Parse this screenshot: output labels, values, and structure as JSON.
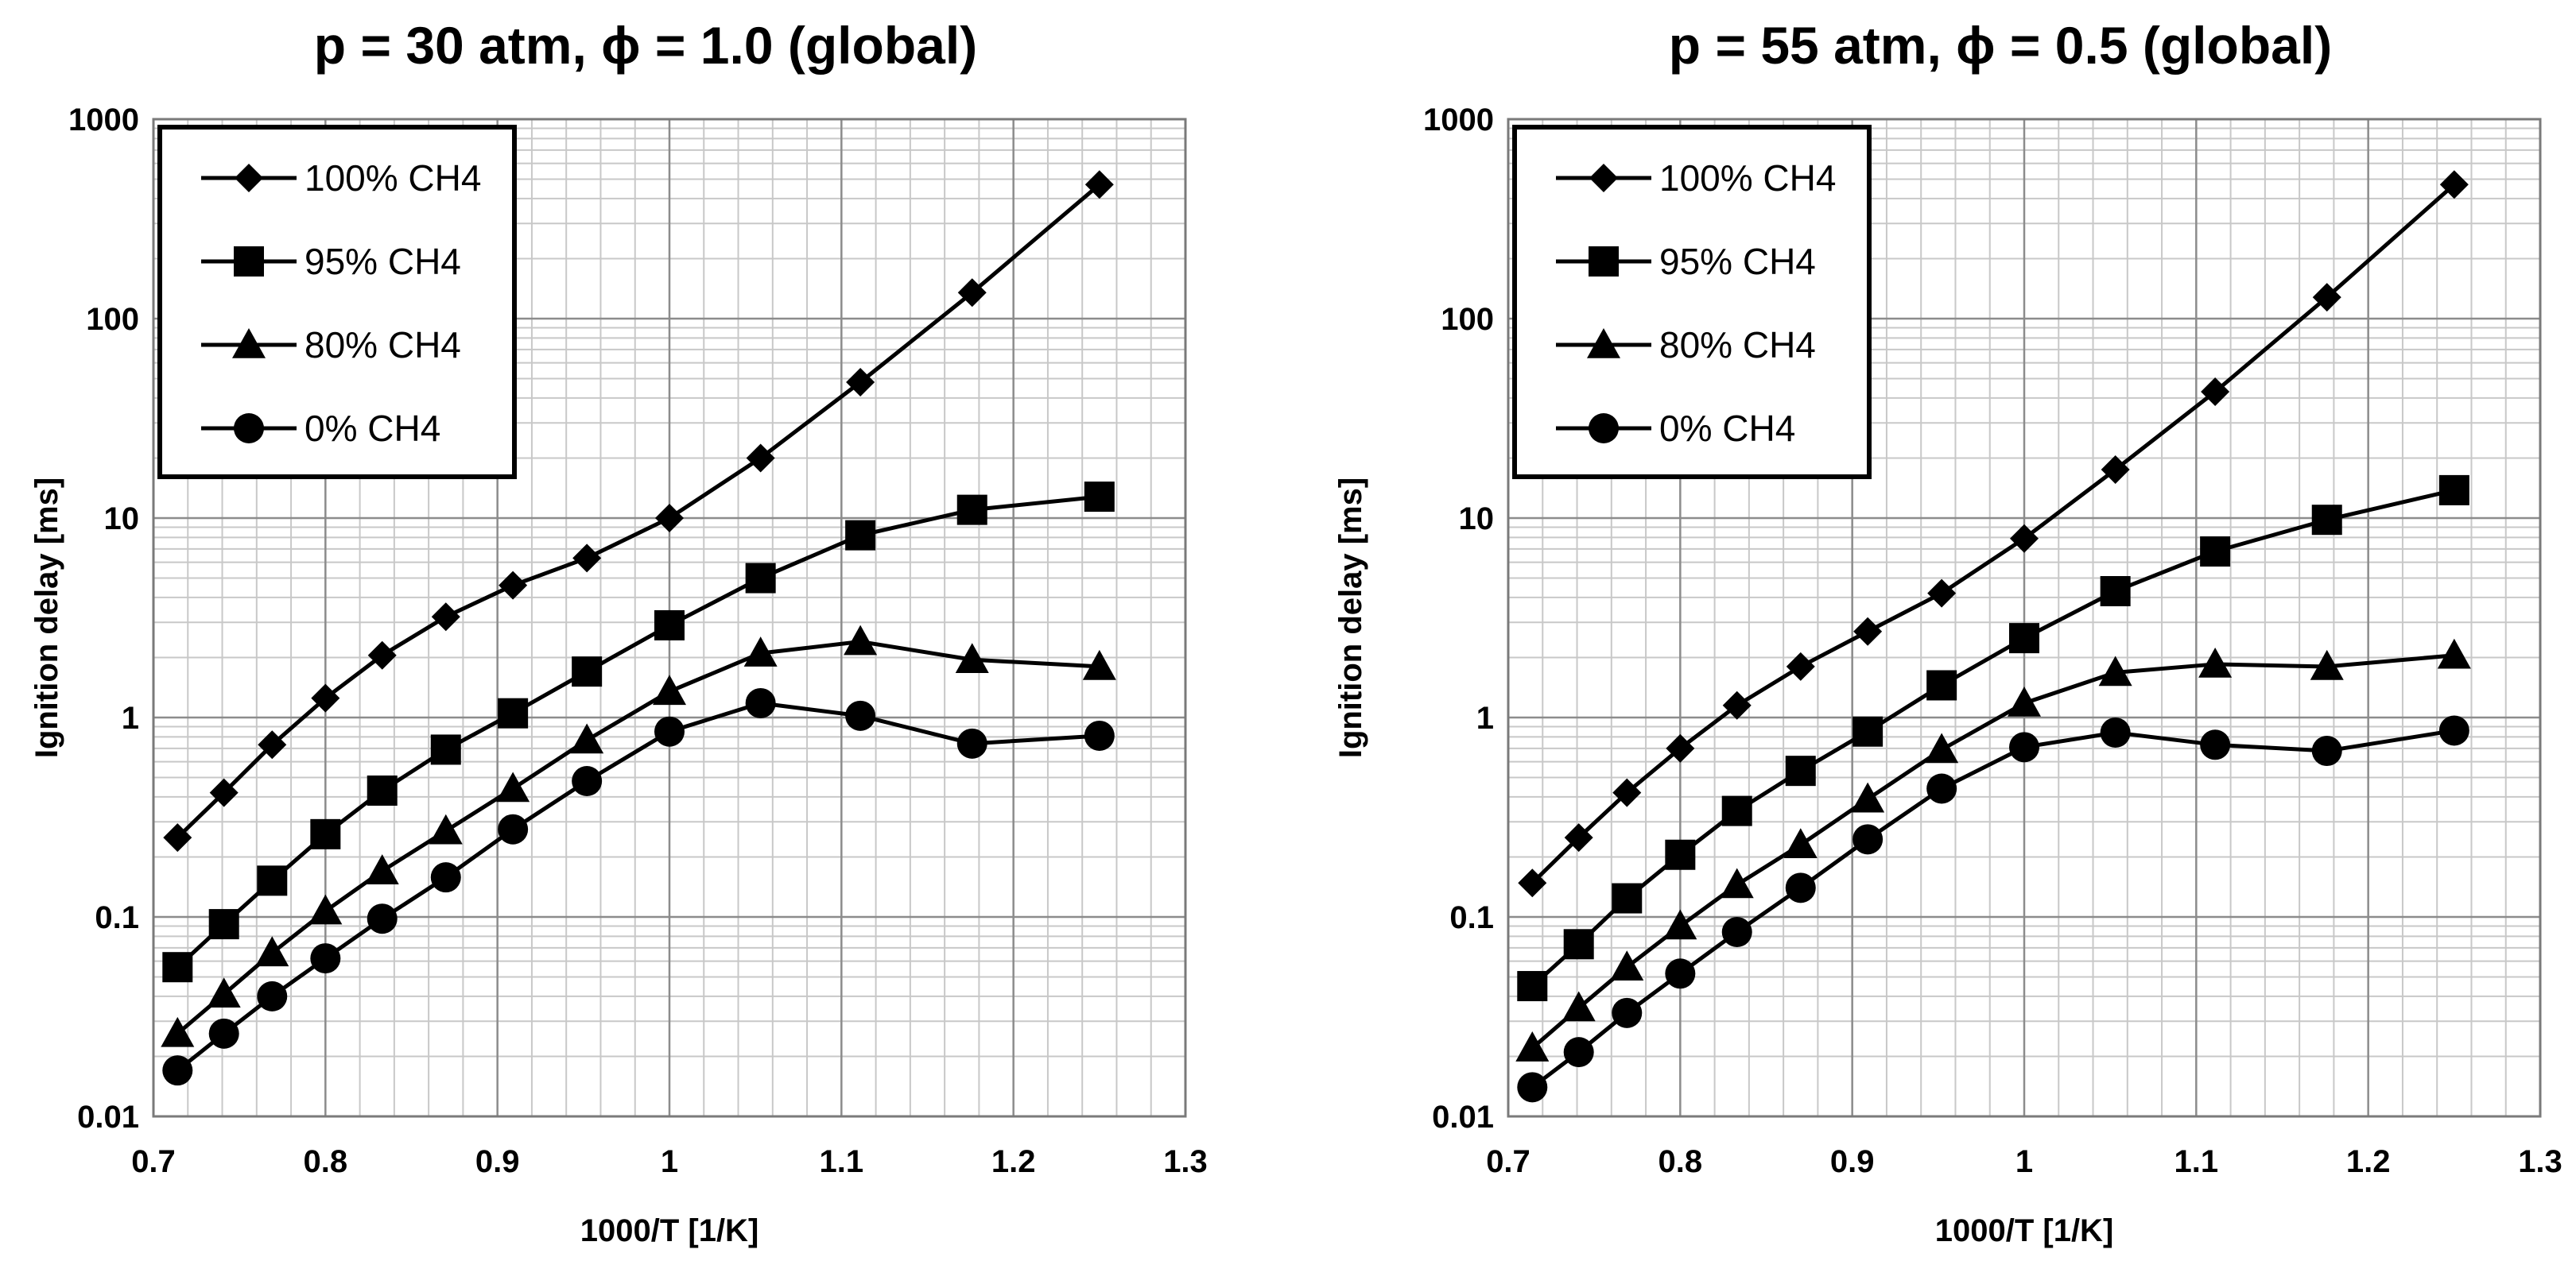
{
  "chart_data": [
    {
      "type": "line",
      "title": "p = 30 atm, ϕ = 1.0 (global)",
      "xlabel": "1000/T [1/K]",
      "ylabel": "Ignition delay [ms]",
      "xlim": [
        0.7,
        1.3
      ],
      "ylim": [
        0.01,
        1000
      ],
      "yscale": "log",
      "grid": true,
      "legend": "top-left",
      "x_ticks": [
        "0.7",
        "0.8",
        "0.9",
        "1",
        "1.1",
        "1.2",
        "1.3"
      ],
      "y_ticks": [
        "0.01",
        "0.1",
        "1",
        "10",
        "100",
        "1000"
      ],
      "x": [
        0.714,
        0.741,
        0.769,
        0.8,
        0.833,
        0.87,
        0.909,
        0.952,
        1.0,
        1.053,
        1.111,
        1.176,
        1.25
      ],
      "series": [
        {
          "name": "100% CH4",
          "marker": "diamond",
          "values": [
            0.25,
            0.42,
            0.73,
            1.25,
            2.05,
            3.2,
            4.6,
            6.3,
            10.0,
            20.0,
            48.0,
            135.0,
            470.0
          ]
        },
        {
          "name": "95% CH4",
          "marker": "square",
          "values": [
            0.056,
            0.092,
            0.152,
            0.26,
            0.43,
            0.69,
            1.05,
            1.7,
            2.9,
            5.0,
            8.2,
            11.0,
            12.8
          ]
        },
        {
          "name": "80% CH4",
          "marker": "triangle",
          "values": [
            0.026,
            0.041,
            0.066,
            0.107,
            0.17,
            0.27,
            0.44,
            0.77,
            1.35,
            2.1,
            2.4,
            1.95,
            1.8
          ]
        },
        {
          "name": "0% CH4",
          "marker": "circle",
          "values": [
            0.017,
            0.026,
            0.04,
            0.062,
            0.098,
            0.158,
            0.275,
            0.48,
            0.85,
            1.18,
            1.02,
            0.74,
            0.81
          ]
        }
      ]
    },
    {
      "type": "line",
      "title": "p = 55 atm, ϕ = 0.5 (global)",
      "xlabel": "1000/T  [1/K]",
      "ylabel": "Ignition delay [ms]",
      "xlim": [
        0.7,
        1.3
      ],
      "ylim": [
        0.01,
        1000
      ],
      "yscale": "log",
      "grid": true,
      "legend": "top-left",
      "x_ticks": [
        "0.7",
        "0.8",
        "0.9",
        "1",
        "1.1",
        "1.2",
        "1.3"
      ],
      "y_ticks": [
        "0.01",
        "0.1",
        "1",
        "10",
        "100",
        "1000"
      ],
      "x": [
        0.714,
        0.741,
        0.769,
        0.8,
        0.833,
        0.87,
        0.909,
        0.952,
        1.0,
        1.053,
        1.111,
        1.176,
        1.25
      ],
      "series": [
        {
          "name": "100% CH4",
          "marker": "diamond",
          "values": [
            0.148,
            0.25,
            0.42,
            0.7,
            1.15,
            1.8,
            2.7,
            4.2,
            7.9,
            17.5,
            43.0,
            128.0,
            470.0
          ]
        },
        {
          "name": "95% CH4",
          "marker": "square",
          "values": [
            0.045,
            0.073,
            0.124,
            0.205,
            0.34,
            0.54,
            0.85,
            1.45,
            2.5,
            4.3,
            6.8,
            9.8,
            13.8
          ]
        },
        {
          "name": "80% CH4",
          "marker": "triangle",
          "values": [
            0.022,
            0.035,
            0.056,
            0.09,
            0.145,
            0.23,
            0.39,
            0.69,
            1.18,
            1.68,
            1.85,
            1.8,
            2.05
          ]
        },
        {
          "name": "0% CH4",
          "marker": "circle",
          "values": [
            0.014,
            0.021,
            0.033,
            0.052,
            0.084,
            0.14,
            0.245,
            0.44,
            0.71,
            0.84,
            0.73,
            0.68,
            0.86
          ]
        }
      ]
    }
  ]
}
